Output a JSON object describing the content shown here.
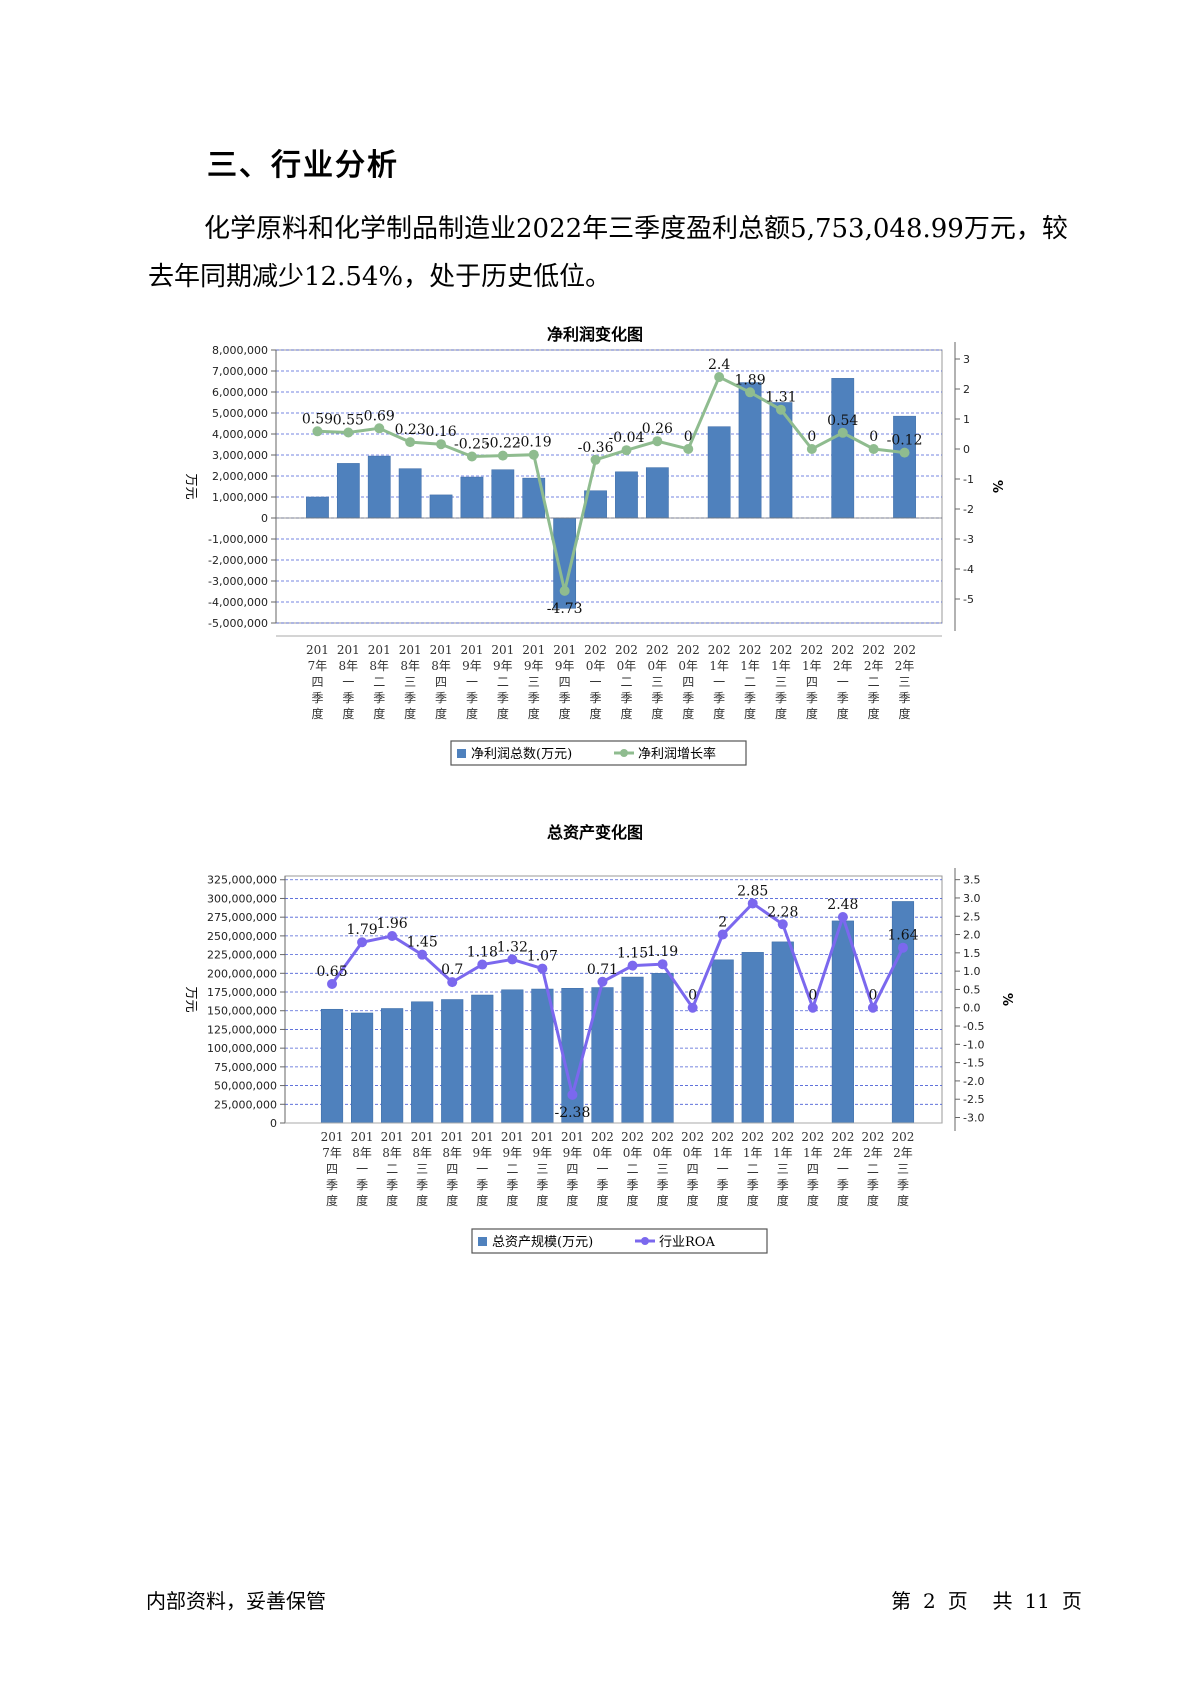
{
  "section": {
    "heading": "三、行业分析",
    "paragraph": "化学原料和化学制品制造业2022年三季度盈利总额5,753,048.99万元，较去年同期减少12.54%，处于历史低位。"
  },
  "footer": {
    "left": "内部资料，妥善保管",
    "page_prefix": "第",
    "page_num": "2",
    "page_unit": "页",
    "total_prefix": "共",
    "total_num": "11",
    "total_unit": "页"
  },
  "chart_data": [
    {
      "type": "bar",
      "title": "净利润变化图",
      "ylabel": "万元",
      "y2label": "%",
      "ylim": [
        -5000000,
        8000000
      ],
      "yticks": [
        -5000000,
        -4000000,
        -3000000,
        -2000000,
        -1000000,
        0,
        1000000,
        2000000,
        3000000,
        4000000,
        5000000,
        6000000,
        7000000,
        8000000
      ],
      "ytick_labels": [
        "-5,000,000",
        "-4,000,000",
        "-3,000,000",
        "-2,000,000",
        "-1,000,000",
        "0",
        "1,000,000",
        "2,000,000",
        "3,000,000",
        "4,000,000",
        "5,000,000",
        "6,000,000",
        "7,000,000",
        "8,000,000"
      ],
      "y2lim": [
        -5.8,
        3.3
      ],
      "y2ticks": [
        -5,
        -4,
        -3,
        -2,
        -1,
        0,
        1,
        2,
        3
      ],
      "y2tick_labels": [
        "-5",
        "-4",
        "-3",
        "-2",
        "-1",
        "0",
        "1",
        "2",
        "3"
      ],
      "categories": [
        [
          "201",
          "7年",
          "四",
          "季",
          "度"
        ],
        [
          "201",
          "8年",
          "一",
          "季",
          "度"
        ],
        [
          "201",
          "8年",
          "二",
          "季",
          "度"
        ],
        [
          "201",
          "8年",
          "三",
          "季",
          "度"
        ],
        [
          "201",
          "8年",
          "四",
          "季",
          "度"
        ],
        [
          "201",
          "9年",
          "一",
          "季",
          "度"
        ],
        [
          "201",
          "9年",
          "二",
          "季",
          "度"
        ],
        [
          "201",
          "9年",
          "三",
          "季",
          "度"
        ],
        [
          "201",
          "9年",
          "四",
          "季",
          "度"
        ],
        [
          "202",
          "0年",
          "一",
          "季",
          "度"
        ],
        [
          "202",
          "0年",
          "二",
          "季",
          "度"
        ],
        [
          "202",
          "0年",
          "三",
          "季",
          "度"
        ],
        [
          "202",
          "0年",
          "四",
          "季",
          "度"
        ],
        [
          "202",
          "1年",
          "一",
          "季",
          "度"
        ],
        [
          "202",
          "1年",
          "二",
          "季",
          "度"
        ],
        [
          "202",
          "1年",
          "三",
          "季",
          "度"
        ],
        [
          "202",
          "1年",
          "四",
          "季",
          "度"
        ],
        [
          "202",
          "2年",
          "一",
          "季",
          "度"
        ],
        [
          "202",
          "2年",
          "二",
          "季",
          "度"
        ],
        [
          "202",
          "2年",
          "三",
          "季",
          "度"
        ]
      ],
      "series": [
        {
          "name": "净利润总数(万元)",
          "kind": "bar",
          "color": "#4f81bd",
          "values": [
            1000000,
            2600000,
            2950000,
            2350000,
            1100000,
            1950000,
            2300000,
            1900000,
            -4300000,
            1300000,
            2200000,
            2400000,
            null,
            4350000,
            6450000,
            5500000,
            null,
            6650000,
            null,
            4850000
          ]
        },
        {
          "name": "净利润增长率",
          "kind": "line",
          "color": "#8fbc8f",
          "axis": "right",
          "values": [
            0.59,
            0.55,
            0.69,
            0.23,
            0.16,
            -0.25,
            -0.22,
            -0.19,
            -4.73,
            -0.36,
            -0.04,
            0.26,
            0,
            2.4,
            1.89,
            1.31,
            0,
            0.54,
            0,
            -0.12
          ],
          "labels": [
            "0.59",
            "0.55",
            "0.69",
            "0.23",
            "0.16",
            "-0.25",
            "-0.22",
            "-0.19",
            "-4.73",
            "-0.36",
            "-0.04",
            "0.26",
            "0",
            "2.4",
            "1.89",
            "1.31",
            "0",
            "0.54",
            "0",
            "-0.12"
          ]
        }
      ],
      "legend_position": "bottom"
    },
    {
      "type": "bar",
      "title": "总资产变化图",
      "ylabel": "万元",
      "y2label": "%",
      "ylim": [
        0,
        330000000
      ],
      "yticks": [
        0,
        25000000,
        50000000,
        75000000,
        100000000,
        125000000,
        150000000,
        175000000,
        200000000,
        225000000,
        250000000,
        275000000,
        300000000,
        325000000
      ],
      "ytick_labels": [
        "0",
        "25,000,000",
        "50,000,000",
        "75,000,000",
        "100,000,000",
        "125,000,000",
        "150,000,000",
        "175,000,000",
        "200,000,000",
        "225,000,000",
        "250,000,000",
        "275,000,000",
        "300,000,000",
        "325,000,000"
      ],
      "y2lim": [
        -3.15,
        3.6
      ],
      "y2ticks": [
        -3.0,
        -2.5,
        -2.0,
        -1.5,
        -1.0,
        -0.5,
        0.0,
        0.5,
        1.0,
        1.5,
        2.0,
        2.5,
        3.0,
        3.5
      ],
      "y2tick_labels": [
        "-3.0",
        "-2.5",
        "-2.0",
        "-1.5",
        "-1.0",
        "-0.5",
        "0.0",
        "0.5",
        "1.0",
        "1.5",
        "2.0",
        "2.5",
        "3.0",
        "3.5"
      ],
      "categories": [
        [
          "201",
          "7年",
          "四",
          "季",
          "度"
        ],
        [
          "201",
          "8年",
          "一",
          "季",
          "度"
        ],
        [
          "201",
          "8年",
          "二",
          "季",
          "度"
        ],
        [
          "201",
          "8年",
          "三",
          "季",
          "度"
        ],
        [
          "201",
          "8年",
          "四",
          "季",
          "度"
        ],
        [
          "201",
          "9年",
          "一",
          "季",
          "度"
        ],
        [
          "201",
          "9年",
          "二",
          "季",
          "度"
        ],
        [
          "201",
          "9年",
          "三",
          "季",
          "度"
        ],
        [
          "201",
          "9年",
          "四",
          "季",
          "度"
        ],
        [
          "202",
          "0年",
          "一",
          "季",
          "度"
        ],
        [
          "202",
          "0年",
          "二",
          "季",
          "度"
        ],
        [
          "202",
          "0年",
          "三",
          "季",
          "度"
        ],
        [
          "202",
          "0年",
          "四",
          "季",
          "度"
        ],
        [
          "202",
          "1年",
          "一",
          "季",
          "度"
        ],
        [
          "202",
          "1年",
          "二",
          "季",
          "度"
        ],
        [
          "202",
          "1年",
          "三",
          "季",
          "度"
        ],
        [
          "202",
          "1年",
          "四",
          "季",
          "度"
        ],
        [
          "202",
          "2年",
          "一",
          "季",
          "度"
        ],
        [
          "202",
          "2年",
          "二",
          "季",
          "度"
        ],
        [
          "202",
          "2年",
          "三",
          "季",
          "度"
        ]
      ],
      "series": [
        {
          "name": "总资产规模(万元)",
          "kind": "bar",
          "color": "#4f81bd",
          "values": [
            152000000,
            147000000,
            153000000,
            162000000,
            165000000,
            171000000,
            178000000,
            179000000,
            180000000,
            181000000,
            195000000,
            200000000,
            null,
            218000000,
            228000000,
            242000000,
            null,
            270000000,
            null,
            296000000
          ]
        },
        {
          "name": "行业ROA",
          "kind": "line",
          "color": "#7b68ee",
          "axis": "right",
          "values": [
            0.65,
            1.79,
            1.96,
            1.45,
            0.7,
            1.18,
            1.32,
            1.07,
            -2.38,
            0.71,
            1.15,
            1.19,
            0,
            2,
            2.85,
            2.28,
            0,
            2.48,
            0,
            1.64
          ],
          "labels": [
            "0.65",
            "1.79",
            "1.96",
            "1.45",
            "0.7",
            "1.18",
            "1.32",
            "1.07",
            "-2.38",
            "0.71",
            "1.15",
            "1.19",
            "0",
            "2",
            "2.85",
            "2.28",
            "0",
            "2.48",
            "0",
            "1.64"
          ]
        }
      ],
      "legend_position": "bottom"
    }
  ]
}
